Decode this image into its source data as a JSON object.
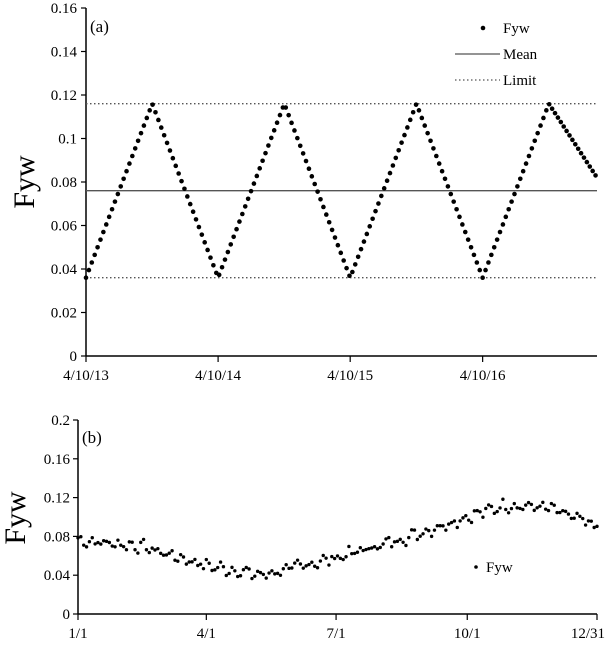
{
  "chart_data": [
    {
      "type": "scatter",
      "panel_label": "(a)",
      "ylabel": "Fyw",
      "xlabel": "",
      "ylim": [
        0,
        0.16
      ],
      "yticks": [
        0,
        0.02,
        0.04,
        0.06,
        0.08,
        0.1,
        0.12,
        0.14,
        0.16
      ],
      "ytick_labels": [
        "0",
        "0.02",
        "0.04",
        "0.06",
        "0.08",
        "0.1",
        "0.12",
        "0.14",
        "0.16"
      ],
      "xlim": [
        "2013-04-10",
        "2017-02-20"
      ],
      "xticks": [
        "2013-04-10",
        "2014-04-10",
        "2015-04-10",
        "2016-04-10"
      ],
      "xtick_labels": [
        "4/10/13",
        "4/10/14",
        "4/10/15",
        "4/10/16"
      ],
      "grid": false,
      "legend": {
        "position": "top-right",
        "entries": [
          "Fyw",
          "Mean",
          "Limit"
        ]
      },
      "series": [
        {
          "name": "Fyw",
          "style": "markers",
          "min": 0.036,
          "max": 0.116,
          "wave": [
            {
              "x": "2013-04-10",
              "y": 0.036
            },
            {
              "x": "2013-10-10",
              "y": 0.116
            },
            {
              "x": "2014-04-10",
              "y": 0.036
            },
            {
              "x": "2014-10-10",
              "y": 0.116
            },
            {
              "x": "2015-04-10",
              "y": 0.036
            },
            {
              "x": "2015-10-10",
              "y": 0.116
            },
            {
              "x": "2016-04-10",
              "y": 0.036
            },
            {
              "x": "2016-10-10",
              "y": 0.116
            },
            {
              "x": "2017-02-20",
              "y": 0.082
            }
          ]
        },
        {
          "name": "Mean",
          "style": "solid-line",
          "y": 0.076
        },
        {
          "name": "Limit",
          "style": "dotted-line",
          "y": [
            0.036,
            0.116
          ]
        }
      ]
    },
    {
      "type": "scatter",
      "panel_label": "(b)",
      "ylabel": "Fyw",
      "xlabel": "",
      "ylim": [
        0,
        0.2
      ],
      "yticks": [
        0,
        0.04,
        0.08,
        0.12,
        0.16,
        0.2
      ],
      "ytick_labels": [
        "0",
        "0.04",
        "0.08",
        "0.12",
        "0.16",
        "0.2"
      ],
      "xlim_day_of_year": [
        1,
        365
      ],
      "xticks_day_of_year": [
        1,
        91,
        182,
        274,
        365
      ],
      "xtick_labels": [
        "1/1",
        "4/1",
        "7/1",
        "10/1",
        "12/31"
      ],
      "grid": false,
      "legend": {
        "position": "center-right",
        "entries": [
          "Fyw"
        ]
      },
      "series": [
        {
          "name": "Fyw",
          "style": "markers",
          "trend_day_of_year": [
            {
              "x": 1,
              "y": 0.076
            },
            {
              "x": 45,
              "y": 0.07
            },
            {
              "x": 91,
              "y": 0.05
            },
            {
              "x": 130,
              "y": 0.04
            },
            {
              "x": 182,
              "y": 0.058
            },
            {
              "x": 230,
              "y": 0.078
            },
            {
              "x": 274,
              "y": 0.1
            },
            {
              "x": 300,
              "y": 0.112
            },
            {
              "x": 330,
              "y": 0.11
            },
            {
              "x": 365,
              "y": 0.09
            }
          ]
        }
      ]
    }
  ]
}
